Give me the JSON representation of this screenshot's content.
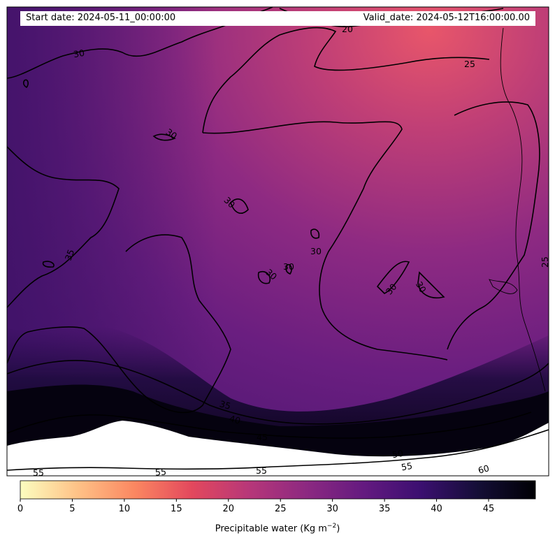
{
  "header": {
    "start_date": "Start date: 2024-05-11_00:00:00",
    "valid_date": "Valid_date: 2024-05-12T16:00:00.00"
  },
  "colorbar": {
    "label": "Precipitable water (Kg m",
    "label_sup": "−2",
    "label_close": ")",
    "min": 0,
    "max": 49.5,
    "ticks": [
      0,
      5,
      10,
      15,
      20,
      25,
      30,
      35,
      40,
      45
    ],
    "colormap": "magma_r",
    "colors": [
      "#fcfdbf",
      "#fec287",
      "#fb8761",
      "#e3485d",
      "#b73779",
      "#8c2981",
      "#641a80",
      "#3b0f70",
      "#140e36",
      "#000004"
    ]
  },
  "contours": {
    "color": "#000000",
    "labels": [
      "20",
      "25",
      "25",
      "30",
      "30",
      "30",
      "30",
      "30",
      "30",
      "30",
      "30",
      "35",
      "35",
      "40",
      "45",
      "50",
      "55",
      "55",
      "55",
      "55",
      "60"
    ]
  }
}
